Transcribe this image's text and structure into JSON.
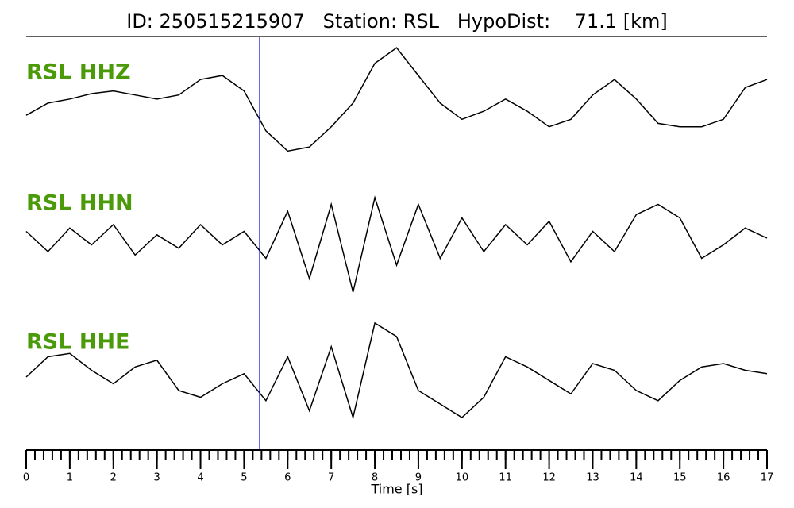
{
  "chart_data": {
    "type": "line",
    "title": "ID: 250515215907   Station: RSL   HypoDist:    71.1 [km]",
    "xlabel": "Time [s]",
    "x": [
      0,
      0.5,
      1,
      1.5,
      2,
      2.5,
      3,
      3.5,
      4,
      4.5,
      5,
      5.5,
      6,
      6.5,
      7,
      7.5,
      8,
      8.5,
      9,
      9.5,
      10,
      10.5,
      11,
      11.5,
      12,
      12.5,
      13,
      13.5,
      14,
      14.5,
      15,
      15.5,
      16,
      16.5,
      17
    ],
    "series": [
      {
        "name": "RSL HHZ",
        "color": "#000000",
        "values": [
          -0.12,
          0.06,
          0.12,
          0.2,
          0.24,
          0.18,
          0.12,
          0.18,
          0.41,
          0.47,
          0.24,
          -0.35,
          -0.65,
          -0.59,
          -0.29,
          0.06,
          0.65,
          0.88,
          0.47,
          0.06,
          -0.18,
          -0.06,
          0.12,
          -0.06,
          -0.29,
          -0.18,
          0.18,
          0.41,
          0.12,
          -0.24,
          -0.29,
          -0.29,
          -0.18,
          0.29,
          0.41
        ]
      },
      {
        "name": "RSL HHN",
        "color": "#000000",
        "values": [
          0.1,
          -0.2,
          0.15,
          -0.1,
          0.2,
          -0.25,
          0.05,
          -0.15,
          0.2,
          -0.1,
          0.1,
          -0.3,
          0.4,
          -0.6,
          0.5,
          -0.8,
          0.6,
          -0.4,
          0.5,
          -0.3,
          0.3,
          -0.2,
          0.2,
          -0.1,
          0.25,
          -0.35,
          0.1,
          -0.2,
          0.35,
          0.5,
          0.3,
          -0.3,
          -0.1,
          0.15,
          0.0
        ]
      },
      {
        "name": "RSL HHE",
        "color": "#000000",
        "values": [
          0.0,
          0.3,
          0.35,
          0.1,
          -0.1,
          0.15,
          0.25,
          -0.2,
          -0.3,
          -0.1,
          0.05,
          -0.35,
          0.3,
          -0.5,
          0.45,
          -0.6,
          0.8,
          0.6,
          -0.2,
          -0.4,
          -0.6,
          -0.3,
          0.3,
          0.15,
          -0.05,
          -0.25,
          0.2,
          0.1,
          -0.2,
          -0.35,
          -0.05,
          0.15,
          0.2,
          0.1,
          0.05
        ]
      }
    ],
    "ylim": [
      -1,
      1
    ],
    "pick_time": 5.36,
    "pick_color": "#0000dd",
    "label_color": "#4a9a0a",
    "xlim": [
      0,
      17
    ],
    "xticks": [
      0,
      1,
      2,
      3,
      4,
      5,
      6,
      7,
      8,
      9,
      10,
      11,
      12,
      13,
      14,
      15,
      16,
      17
    ],
    "xminor_step": 0.2
  }
}
